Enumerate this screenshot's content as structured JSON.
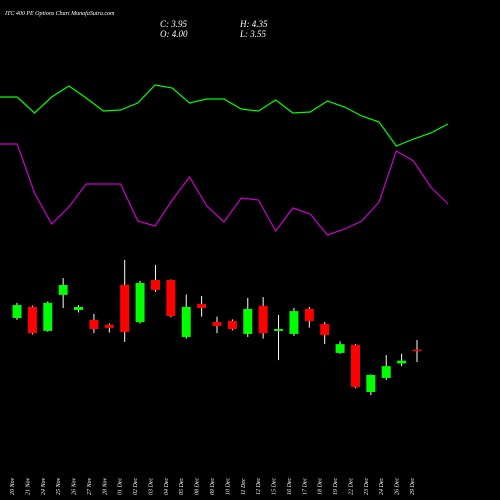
{
  "chart_data": {
    "type": "candlestick",
    "title": "ITC 400 PE Options Chart MunafaSutra.com",
    "ohlc_header": [
      "C: 3.95",
      "H: 4.35",
      "O: 4.00",
      "L: 3.55"
    ],
    "categories": [
      "20 Nov",
      "21 Nov",
      "24 Nov",
      "25 Nov",
      "26 Nov",
      "27 Nov",
      "28 Nov",
      "01 Dec",
      "02 Dec",
      "03 Dec",
      "04 Dec",
      "05 Dec",
      "08 Dec",
      "09 Dec",
      "10 Dec",
      "11 Dec",
      "12 Dec",
      "15 Dec",
      "16 Dec",
      "17 Dec",
      "18 Dec",
      "19 Dec",
      "22 Dec",
      "23 Dec",
      "24 Dec",
      "26 Dec",
      "29 Dec"
    ],
    "open": [
      5.15,
      5.55,
      4.68,
      5.99,
      5.44,
      5.08,
      4.9,
      6.35,
      5.0,
      6.53,
      6.53,
      4.46,
      5.66,
      5.0,
      5.04,
      4.57,
      5.59,
      4.68,
      4.57,
      5.48,
      4.93,
      3.88,
      4.17,
      2.46,
      2.97,
      3.5,
      4.0
    ],
    "high": [
      5.7,
      5.6,
      5.75,
      6.6,
      5.62,
      5.3,
      4.95,
      7.26,
      6.5,
      7.08,
      6.55,
      6.0,
      5.95,
      5.2,
      5.1,
      5.88,
      5.91,
      5.26,
      5.51,
      5.55,
      5.0,
      4.3,
      4.2,
      3.1,
      3.8,
      3.85,
      4.35
    ],
    "low": [
      5.08,
      4.55,
      4.65,
      5.51,
      5.35,
      4.6,
      4.62,
      4.28,
      4.95,
      6.1,
      5.18,
      4.4,
      5.2,
      4.6,
      4.7,
      4.46,
      4.4,
      3.62,
      4.5,
      4.8,
      4.2,
      3.85,
      2.6,
      2.35,
      2.9,
      3.4,
      3.55
    ],
    "close": [
      5.62,
      4.6,
      5.7,
      6.35,
      5.55,
      4.75,
      4.79,
      4.64,
      6.42,
      6.17,
      5.22,
      5.55,
      5.51,
      4.86,
      4.75,
      5.48,
      4.6,
      4.75,
      5.4,
      5.04,
      4.53,
      4.2,
      2.64,
      3.08,
      3.4,
      3.6,
      3.95
    ],
    "up_color": "#00ff00",
    "down_color": "#ff0000",
    "wick_color": "#ffffff",
    "ylim": [
      2.17,
      7.62
    ],
    "indicators": [
      {
        "color": "#00ff00",
        "values": [
          203,
          203,
          187,
          203,
          214,
          202,
          189,
          190,
          197,
          215,
          212,
          197,
          201,
          201,
          191,
          189,
          200,
          187,
          188,
          199,
          193,
          184,
          178,
          154,
          161,
          167,
          176
        ]
      },
      {
        "color": "#cc00cc",
        "values": [
          156,
          156,
          107,
          76,
          93,
          116,
          116,
          116,
          79,
          74,
          100,
          123,
          94,
          78,
          102,
          100,
          69,
          92,
          86,
          65,
          71,
          79,
          98,
          149,
          139,
          113,
          96
        ]
      }
    ],
    "indicator_ylim": [
      0,
      300
    ]
  }
}
